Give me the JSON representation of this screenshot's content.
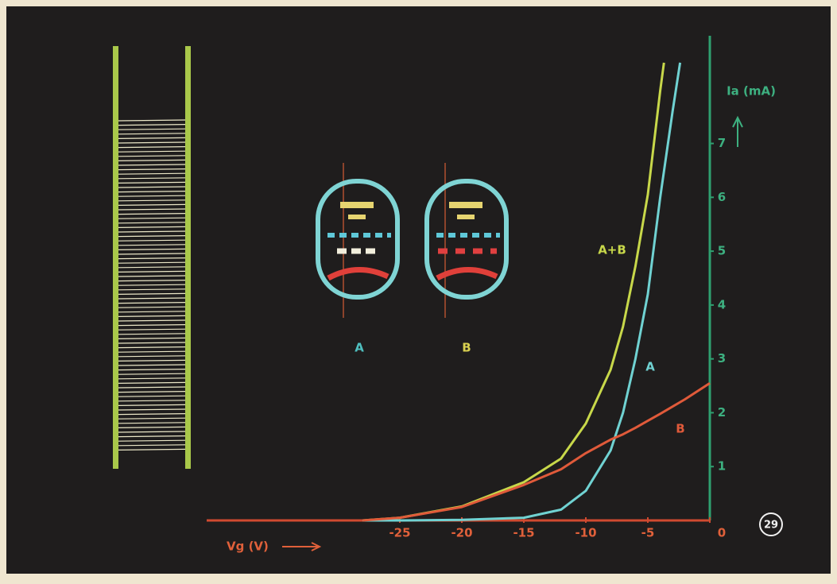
{
  "chart_data": {
    "type": "line",
    "x_label": "Vg (V)",
    "y_label": "Ia (mA)",
    "figure_number": "29",
    "tube_labels": [
      "A",
      "B"
    ],
    "xlim": [
      -40,
      0
    ],
    "xticks": [
      -25,
      -20,
      -15,
      -10,
      -5,
      0
    ],
    "ylim": [
      0,
      9
    ],
    "yticks": [
      1,
      2,
      3,
      4,
      5,
      6,
      7
    ],
    "series": [
      {
        "name": "A+B",
        "color": "#c8d84a",
        "x": [
          -28,
          -25,
          -20,
          -15,
          -12,
          -10,
          -8,
          -7,
          -6,
          -5,
          -4,
          -3.7
        ],
        "values": [
          0,
          0.05,
          0.26,
          0.71,
          1.15,
          1.8,
          2.8,
          3.6,
          4.72,
          6.05,
          7.98,
          8.5
        ]
      },
      {
        "name": "A",
        "color": "#70d2d2",
        "x": [
          -28,
          -25,
          -20,
          -15,
          -12,
          -10,
          -8,
          -7,
          -6,
          -5,
          -4,
          -3,
          -2.4
        ],
        "values": [
          0,
          0,
          0.01,
          0.05,
          0.2,
          0.55,
          1.3,
          2,
          3,
          4.2,
          6,
          7.6,
          8.5
        ]
      },
      {
        "name": "B",
        "color": "#e05a3a",
        "x": [
          -28,
          -25,
          -20,
          -15,
          -12,
          -10,
          -8,
          -7,
          -6,
          -5,
          -4,
          -2,
          0
        ],
        "values": [
          0,
          0.05,
          0.25,
          0.66,
          0.95,
          1.25,
          1.5,
          1.6,
          1.72,
          1.85,
          1.98,
          2.25,
          2.55
        ]
      }
    ]
  }
}
